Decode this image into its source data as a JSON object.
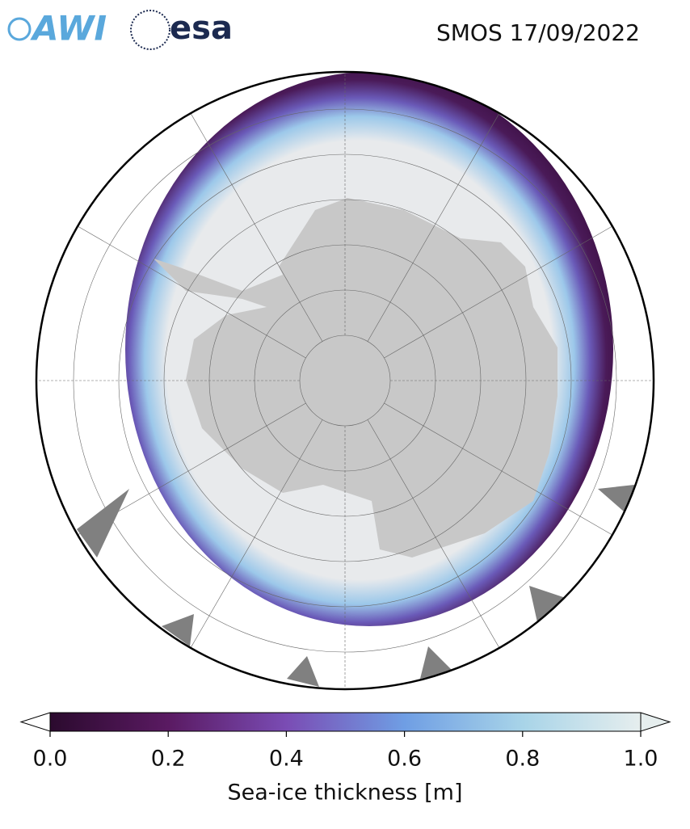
{
  "header": {
    "logos": [
      "AWI",
      "esa"
    ],
    "title": "SMOS 17/09/2022"
  },
  "colorbar": {
    "label": "Sea-ice thickness [m]",
    "lim": [
      0,
      1
    ],
    "ticks": [
      {
        "value": 0,
        "label": "0.0"
      },
      {
        "value": 0.2,
        "label": "0.2"
      },
      {
        "value": 0.4,
        "label": "0.4"
      },
      {
        "value": 0.6,
        "label": "0.6"
      },
      {
        "value": 0.8,
        "label": "0.8"
      },
      {
        "value": 1,
        "label": "1.0"
      }
    ],
    "colors": [
      "#2b0a2e",
      "#5a1a62",
      "#7a4cb4",
      "#6f9ee4",
      "#a8d4e8",
      "#e6eeee"
    ]
  }
}
